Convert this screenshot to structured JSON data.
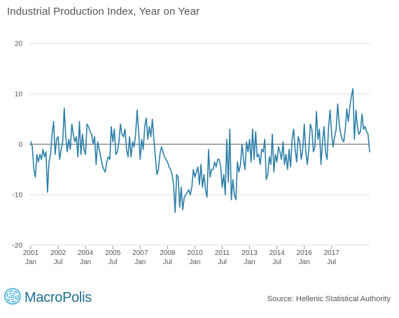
{
  "title": "Industrial Production Index, Year on Year",
  "source": "Source: Hellenic Statistical Authority",
  "logo": {
    "text": "MacroPolis",
    "icon": "fingerprint-globe-icon"
  },
  "colors": {
    "line": "#2c7fa8",
    "grid": "#dedede",
    "zero_line": "#555555",
    "logo": "#1f6f8f"
  },
  "chart_data": {
    "type": "line",
    "title": "Industrial Production Index, Year on Year",
    "xlabel": "",
    "ylabel": "",
    "ylim": [
      -20,
      20
    ],
    "yticks": [
      -20,
      -10,
      0,
      10,
      20
    ],
    "grid": true,
    "x_start": "2001-01",
    "frequency": "monthly",
    "xticks": [
      {
        "year": "2001",
        "month": "Jan",
        "x": "2001-01"
      },
      {
        "year": "2002",
        "month": "Jul",
        "x": "2002-07"
      },
      {
        "year": "2004",
        "month": "Jan",
        "x": "2004-01"
      },
      {
        "year": "2005",
        "month": "Jul",
        "x": "2005-07"
      },
      {
        "year": "2007",
        "month": "Jan",
        "x": "2007-01"
      },
      {
        "year": "2008",
        "month": "Jul",
        "x": "2008-07"
      },
      {
        "year": "2010",
        "month": "Jan",
        "x": "2010-01"
      },
      {
        "year": "2011",
        "month": "Jul",
        "x": "2011-07"
      },
      {
        "year": "2013",
        "month": "Jan",
        "x": "2013-01"
      },
      {
        "year": "2014",
        "month": "Jul",
        "x": "2014-07"
      },
      {
        "year": "2016",
        "month": "Jan",
        "x": "2016-01"
      },
      {
        "year": "2017",
        "month": "Jul",
        "x": "2017-07"
      }
    ],
    "series": [
      {
        "values": [
          0.5,
          -0.5,
          -5.0,
          -6.5,
          -2.0,
          -3.5,
          -2.0,
          -3.0,
          -1.0,
          -2.5,
          -1.5,
          -9.5,
          -3.5,
          -2.0,
          2.0,
          4.5,
          -2.0,
          1.0,
          1.5,
          -3.0,
          -1.0,
          0.5,
          7.2,
          1.5,
          -1.5,
          1.0,
          -1.0,
          4.0,
          2.0,
          0.5,
          1.5,
          -2.5,
          4.5,
          -2.0,
          2.0,
          -1.0,
          -2.0,
          4.0,
          3.5,
          2.5,
          2.0,
          0.0,
          1.5,
          -4.0,
          0.5,
          -1.0,
          -2.5,
          -4.0,
          -5.0,
          -5.5,
          -3.5,
          -2.5,
          -3.0,
          3.5,
          0.5,
          3.0,
          -2.0,
          -1.5,
          0.5,
          4.0,
          2.0,
          1.5,
          3.0,
          -1.0,
          -2.5,
          1.5,
          -2.5,
          0.5,
          -0.5,
          2.0,
          6.8,
          2.5,
          -3.0,
          1.0,
          -1.0,
          3.5,
          5.2,
          1.0,
          3.5,
          1.5,
          5.0,
          1.0,
          -2.5,
          -6.0,
          -5.0,
          -2.0,
          -0.5,
          -1.5,
          -2.5,
          -3.0,
          -3.5,
          -4.5,
          -5.0,
          -6.0,
          -8.0,
          -13.5,
          -6.0,
          -6.5,
          -12.5,
          -8.5,
          -13.0,
          -10.5,
          -10.0,
          -9.5,
          -9.0,
          -10.0,
          -8.5,
          -5.0,
          -6.5,
          -5.5,
          -4.5,
          -8.0,
          -4.0,
          -8.5,
          -6.0,
          -9.0,
          -10.5,
          -1.0,
          -6.5,
          -5.0,
          -5.0,
          -3.5,
          -4.5,
          -3.0,
          -3.0,
          -4.5,
          -8.5,
          -6.0,
          -10.0,
          1.0,
          -7.5,
          3.0,
          -11.0,
          -7.0,
          -10.0,
          -11.0,
          -3.5,
          -5.5,
          -4.0,
          0.0,
          -3.0,
          -5.0,
          0.5,
          -1.5,
          1.0,
          -3.5,
          3.0,
          -3.0,
          2.5,
          -2.5,
          -2.0,
          -4.0,
          -1.0,
          -1.5,
          1.0,
          -7.0,
          -6.0,
          -2.5,
          -4.0,
          2.0,
          -5.5,
          -2.0,
          -3.5,
          -0.5,
          -1.5,
          -3.0,
          0.5,
          -4.0,
          -2.0,
          -5.0,
          -1.0,
          -4.5,
          1.0,
          3.0,
          -1.0,
          -3.5,
          1.5,
          0.5,
          -3.0,
          -1.0,
          4.0,
          -1.5,
          -4.0,
          -1.0,
          4.0,
          3.0,
          -1.5,
          -0.5,
          6.5,
          1.0,
          3.0,
          -4.0,
          0.5,
          3.5,
          -1.5,
          -3.0,
          3.5,
          6.8,
          2.0,
          -0.5,
          1.5,
          3.0,
          8.0,
          4.0,
          2.0,
          1.0,
          0.5,
          3.0,
          7.0,
          4.5,
          7.5,
          9.5,
          11.0,
          1.0,
          6.8,
          3.5,
          2.0,
          2.5,
          6.0,
          3.0,
          3.5,
          2.5,
          2.0,
          -1.5
        ]
      }
    ]
  }
}
